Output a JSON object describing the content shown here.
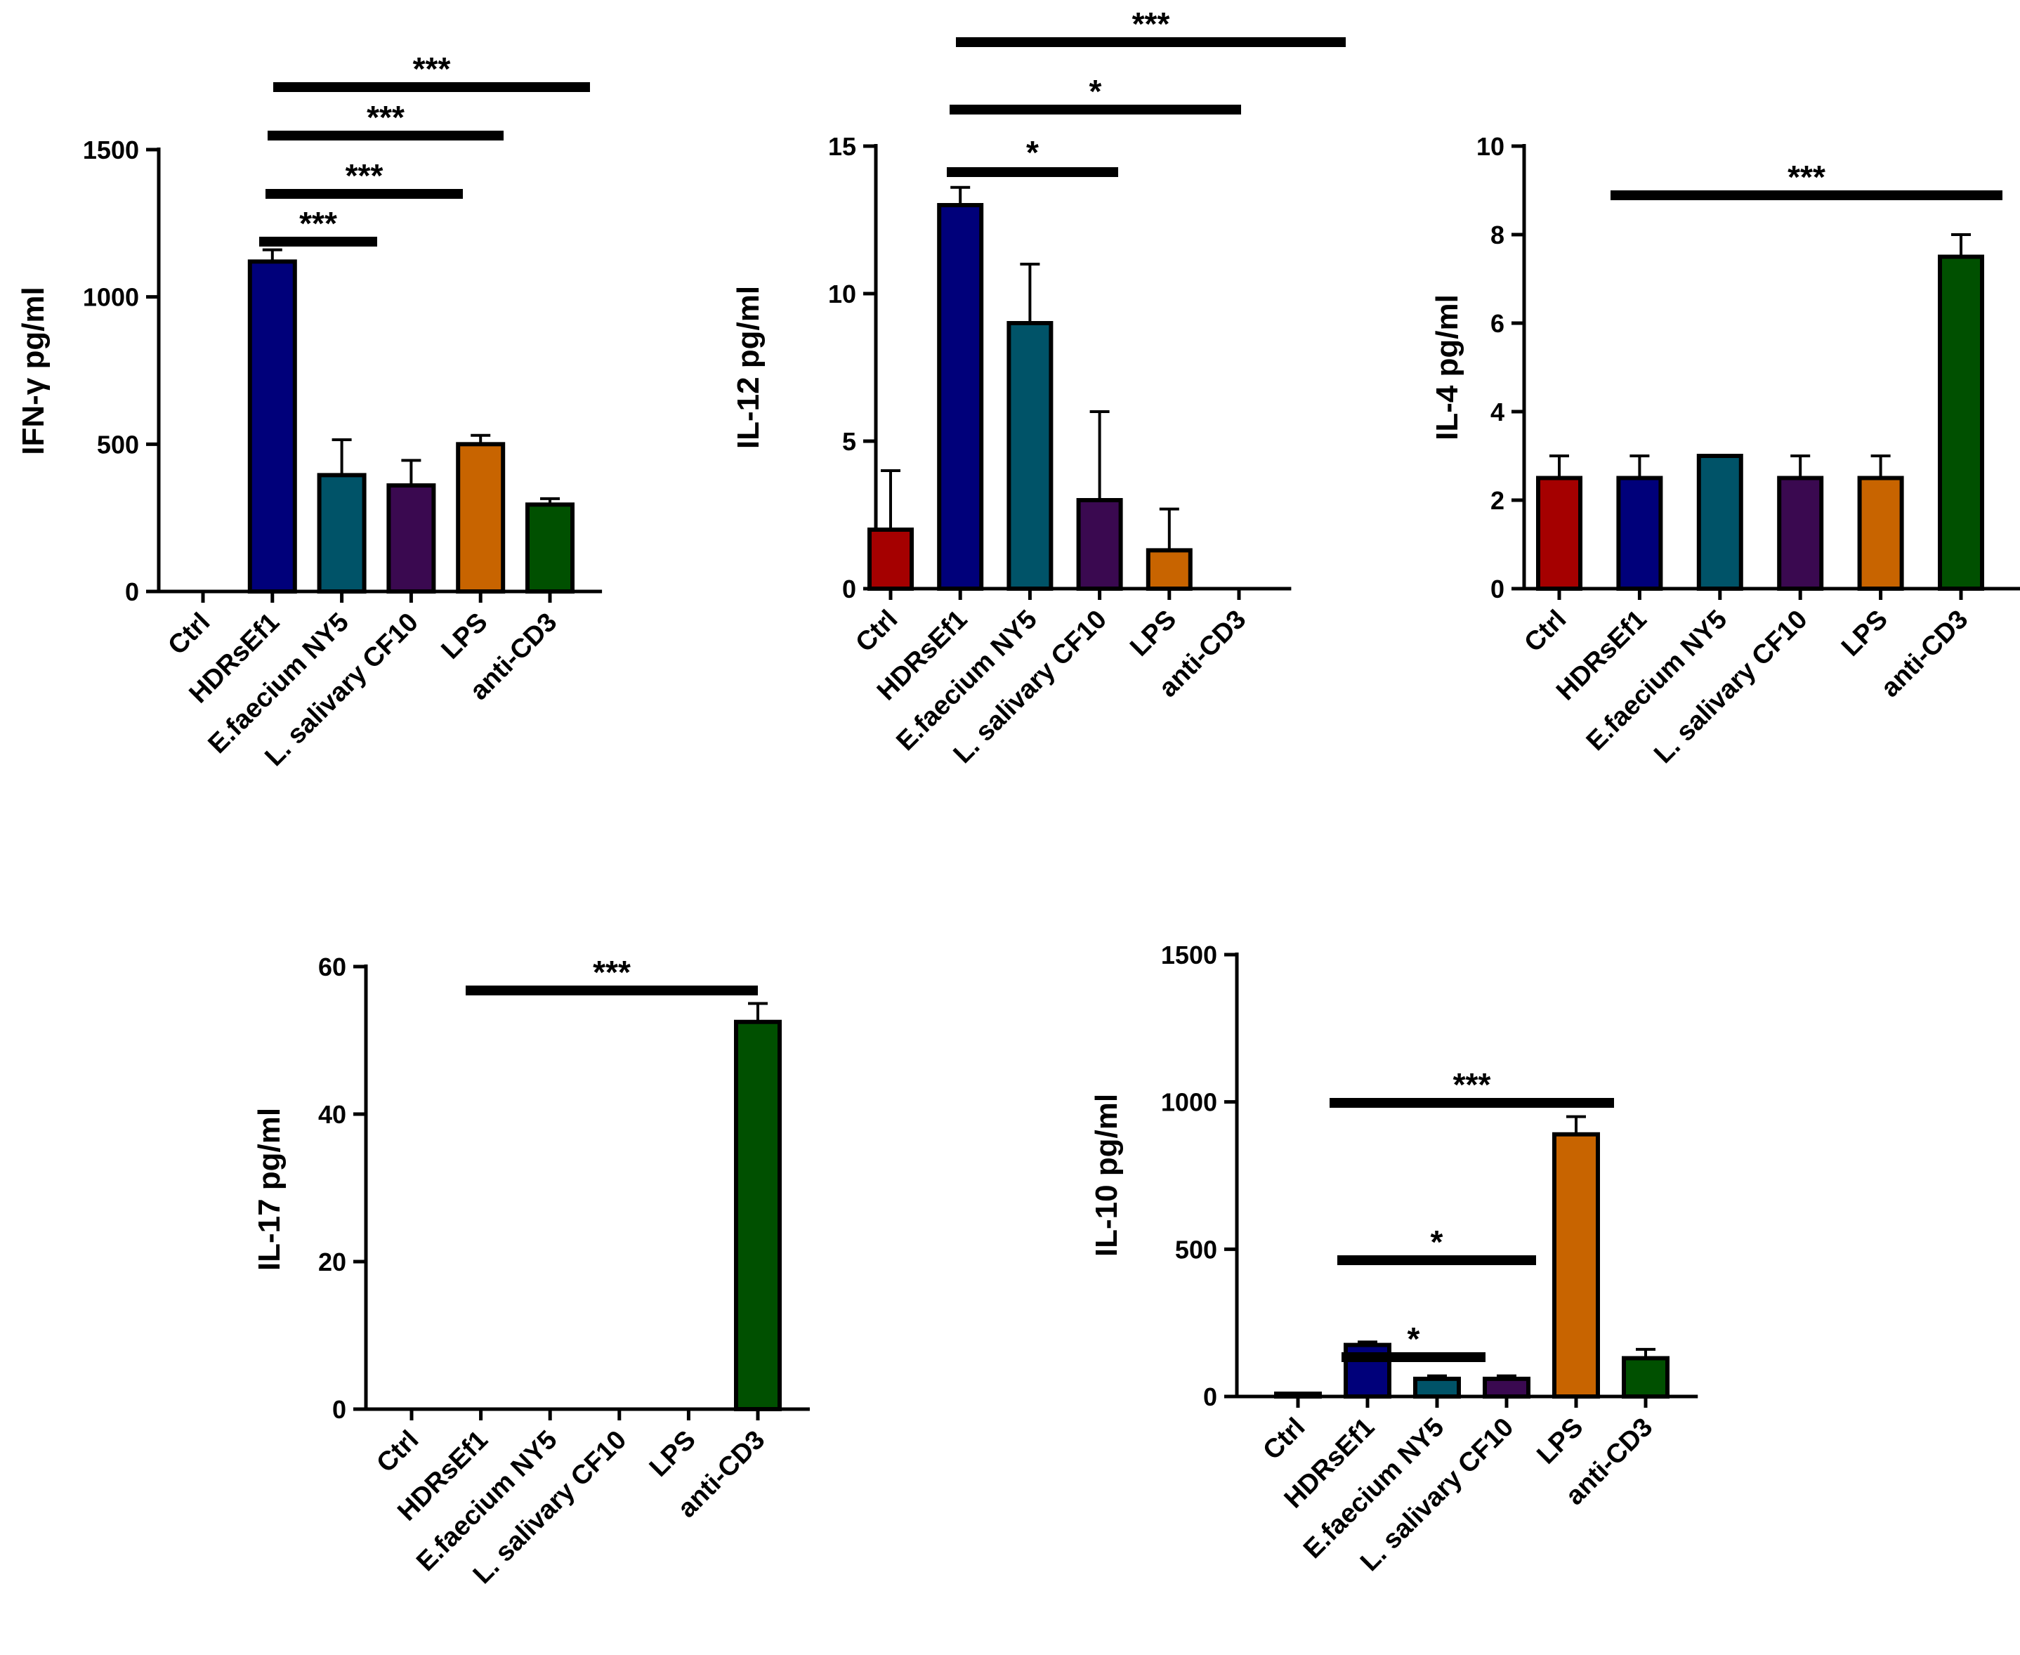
{
  "categories": [
    "Ctrl",
    "HDRsEf1",
    "E.faecium NY5",
    "L. salivary CF10",
    "LPS",
    "anti-CD3"
  ],
  "colors": [
    "#a50000",
    "#00007a",
    "#005368",
    "#3a0950",
    "#c86400",
    "#005000"
  ],
  "chart_data": [
    {
      "type": "bar",
      "ylabel": "IFN-γ pg/ml",
      "ylim": [
        0,
        1500
      ],
      "yticks": [
        0,
        500,
        1000,
        1500
      ],
      "ytick_labels": [
        "0",
        "500",
        "1000",
        "1500"
      ],
      "categories": [
        "Ctrl",
        "HDRsEf1",
        "E.faecium NY5",
        "L. salivary CF10",
        "LPS",
        "anti-CD3"
      ],
      "values": [
        0,
        1120,
        395,
        360,
        500,
        295
      ],
      "errors": [
        0,
        40,
        120,
        85,
        30,
        20
      ],
      "significance": [
        {
          "from": 1,
          "to": 2,
          "label": "***"
        },
        {
          "from": 1,
          "to": 3,
          "label": "***"
        },
        {
          "from": 1,
          "to": 4,
          "label": "***"
        },
        {
          "from": 1,
          "to": 5,
          "label": "***"
        }
      ]
    },
    {
      "type": "bar",
      "ylabel": "IL-12 pg/ml",
      "ylim": [
        0,
        15
      ],
      "yticks": [
        0,
        5,
        10,
        15
      ],
      "ytick_labels": [
        "0",
        "5",
        "10",
        "15"
      ],
      "categories": [
        "Ctrl",
        "HDRsEf1",
        "E.faecium NY5",
        "L. salivary CF10",
        "LPS",
        "anti-CD3"
      ],
      "values": [
        2,
        13,
        9,
        3,
        1.3,
        0
      ],
      "errors": [
        2,
        0.6,
        2,
        3,
        1.4,
        0
      ],
      "significance": [
        {
          "from": 1,
          "to": 3,
          "label": "*"
        },
        {
          "from": 1,
          "to": 5,
          "label": "*"
        },
        {
          "from": 1,
          "to": 6,
          "label": "***"
        }
      ]
    },
    {
      "type": "bar",
      "ylabel": "IL-4 pg/ml",
      "ylim": [
        0,
        10
      ],
      "yticks": [
        0,
        2,
        4,
        6,
        8,
        10
      ],
      "ytick_labels": [
        "0",
        "2",
        "4",
        "6",
        "8",
        "10"
      ],
      "categories": [
        "Ctrl",
        "HDRsEf1",
        "E.faecium NY5",
        "L. salivary CF10",
        "LPS",
        "anti-CD3"
      ],
      "values": [
        2.5,
        2.5,
        3,
        2.5,
        2.5,
        7.5
      ],
      "errors": [
        0.5,
        0.5,
        0,
        0.5,
        0.5,
        0.5
      ],
      "significance": [
        {
          "from": 0,
          "to": 6,
          "label": "***"
        }
      ]
    },
    {
      "type": "bar",
      "ylabel": "IL-17 pg/ml",
      "ylim": [
        0,
        60
      ],
      "yticks": [
        0,
        20,
        40,
        60
      ],
      "ytick_labels": [
        "0",
        "20",
        "40",
        "60"
      ],
      "categories": [
        "Ctrl",
        "HDRsEf1",
        "E.faecium NY5",
        "L. salivary CF10",
        "LPS",
        "anti-CD3"
      ],
      "values": [
        0,
        0,
        0,
        0,
        0,
        52.5
      ],
      "errors": [
        0,
        0,
        0,
        0,
        0,
        2.5
      ],
      "significance": [
        {
          "from": 1,
          "to": 5,
          "label": "***"
        }
      ]
    },
    {
      "type": "bar",
      "ylabel": "IL-10 pg/ml",
      "ylim": [
        0,
        1500
      ],
      "yticks": [
        0,
        500,
        1000,
        1500
      ],
      "ytick_labels": [
        "0",
        "500",
        "1000",
        "1500"
      ],
      "categories": [
        "Ctrl",
        "HDRsEf1",
        "E.faecium NY5",
        "L. salivary CF10",
        "LPS",
        "anti-CD3"
      ],
      "values": [
        2,
        175,
        60,
        60,
        890,
        130
      ],
      "errors": [
        2,
        10,
        10,
        10,
        60,
        30
      ],
      "significance": [
        {
          "from": 1,
          "to": 3,
          "label": "*"
        },
        {
          "from": 1,
          "to": 4,
          "label": "*"
        },
        {
          "from": 1,
          "to": 4,
          "label": "***"
        }
      ]
    }
  ]
}
